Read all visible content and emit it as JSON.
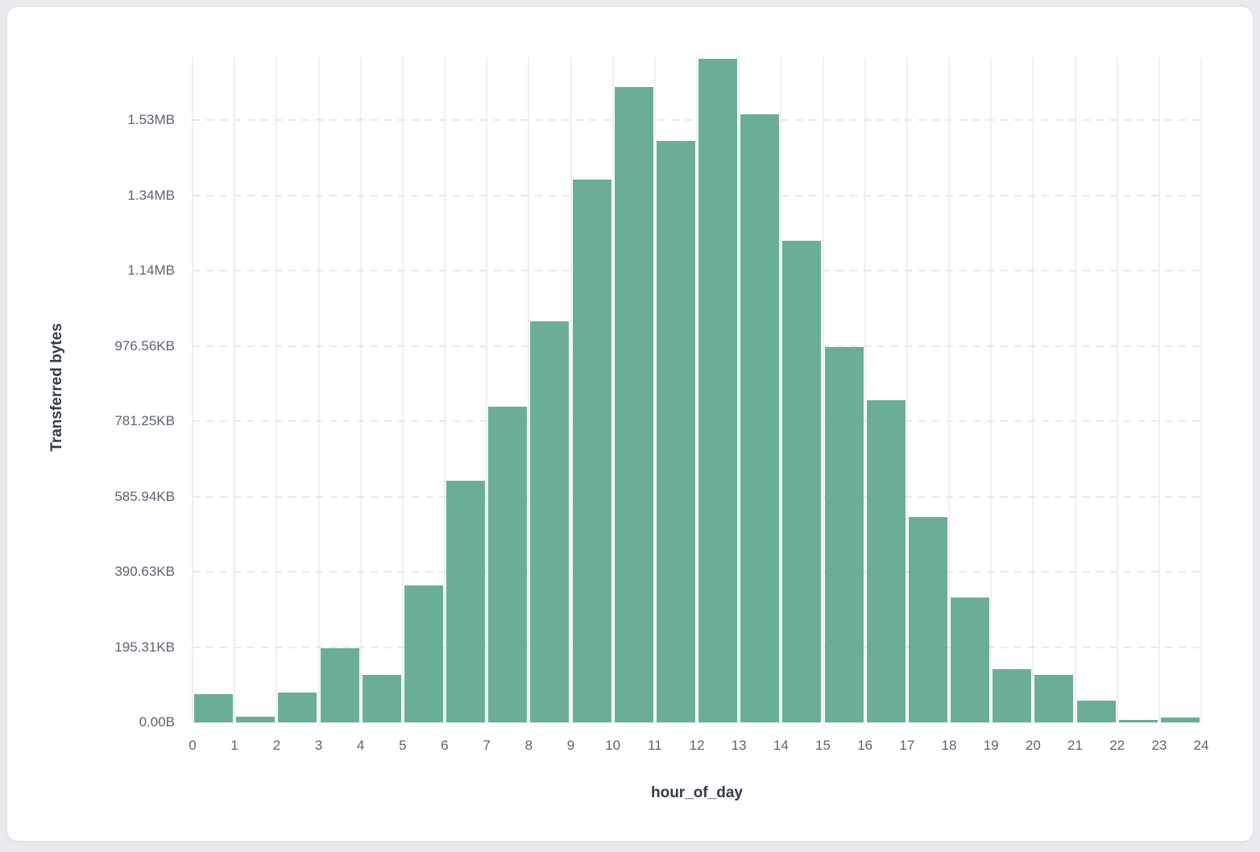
{
  "page": {
    "background_color": "#e9eaed",
    "card_background": "#ffffff"
  },
  "chart_data": {
    "type": "bar",
    "title": "",
    "xlabel": "hour_of_day",
    "ylabel": "Transferred bytes",
    "x_bin_edges": [
      0,
      1,
      2,
      3,
      4,
      5,
      6,
      7,
      8,
      9,
      10,
      11,
      12,
      13,
      14,
      15,
      16,
      17,
      18,
      19,
      20,
      21,
      22,
      23,
      24
    ],
    "x_tick_labels": [
      "0",
      "1",
      "2",
      "3",
      "4",
      "5",
      "6",
      "7",
      "8",
      "9",
      "10",
      "11",
      "12",
      "13",
      "14",
      "15",
      "16",
      "17",
      "18",
      "19",
      "20",
      "21",
      "22",
      "23",
      "24"
    ],
    "categories": [
      "0",
      "1",
      "2",
      "3",
      "4",
      "5",
      "6",
      "7",
      "8",
      "9",
      "10",
      "11",
      "12",
      "13",
      "14",
      "15",
      "16",
      "17",
      "18",
      "19",
      "20",
      "21",
      "22",
      "23"
    ],
    "values_bytes": [
      75000,
      16000,
      79000,
      197000,
      126000,
      364000,
      642000,
      839000,
      1066000,
      1442000,
      1688000,
      1545000,
      1763000,
      1615000,
      1280000,
      997000,
      856000,
      546000,
      332000,
      141000,
      127000,
      57000,
      6000,
      13000
    ],
    "y_ticks": [
      {
        "label": "0.00B",
        "bytes": 0
      },
      {
        "label": "195.31KB",
        "bytes": 200000
      },
      {
        "label": "390.63KB",
        "bytes": 400000
      },
      {
        "label": "585.94KB",
        "bytes": 600000
      },
      {
        "label": "781.25KB",
        "bytes": 800000
      },
      {
        "label": "976.56KB",
        "bytes": 1000000
      },
      {
        "label": "1.14MB",
        "bytes": 1200000
      },
      {
        "label": "1.34MB",
        "bytes": 1400000
      },
      {
        "label": "1.53MB",
        "bytes": 1600000
      }
    ],
    "ylim": [
      0,
      1767000
    ],
    "grid": "on",
    "legend": "none",
    "bar_color": "#6bae97",
    "vgrid_color": "#eef0f3",
    "hgrid_color": "#e6e9ee",
    "tick_label_color": "#5d6470",
    "axis_title_color": "#343b48"
  }
}
